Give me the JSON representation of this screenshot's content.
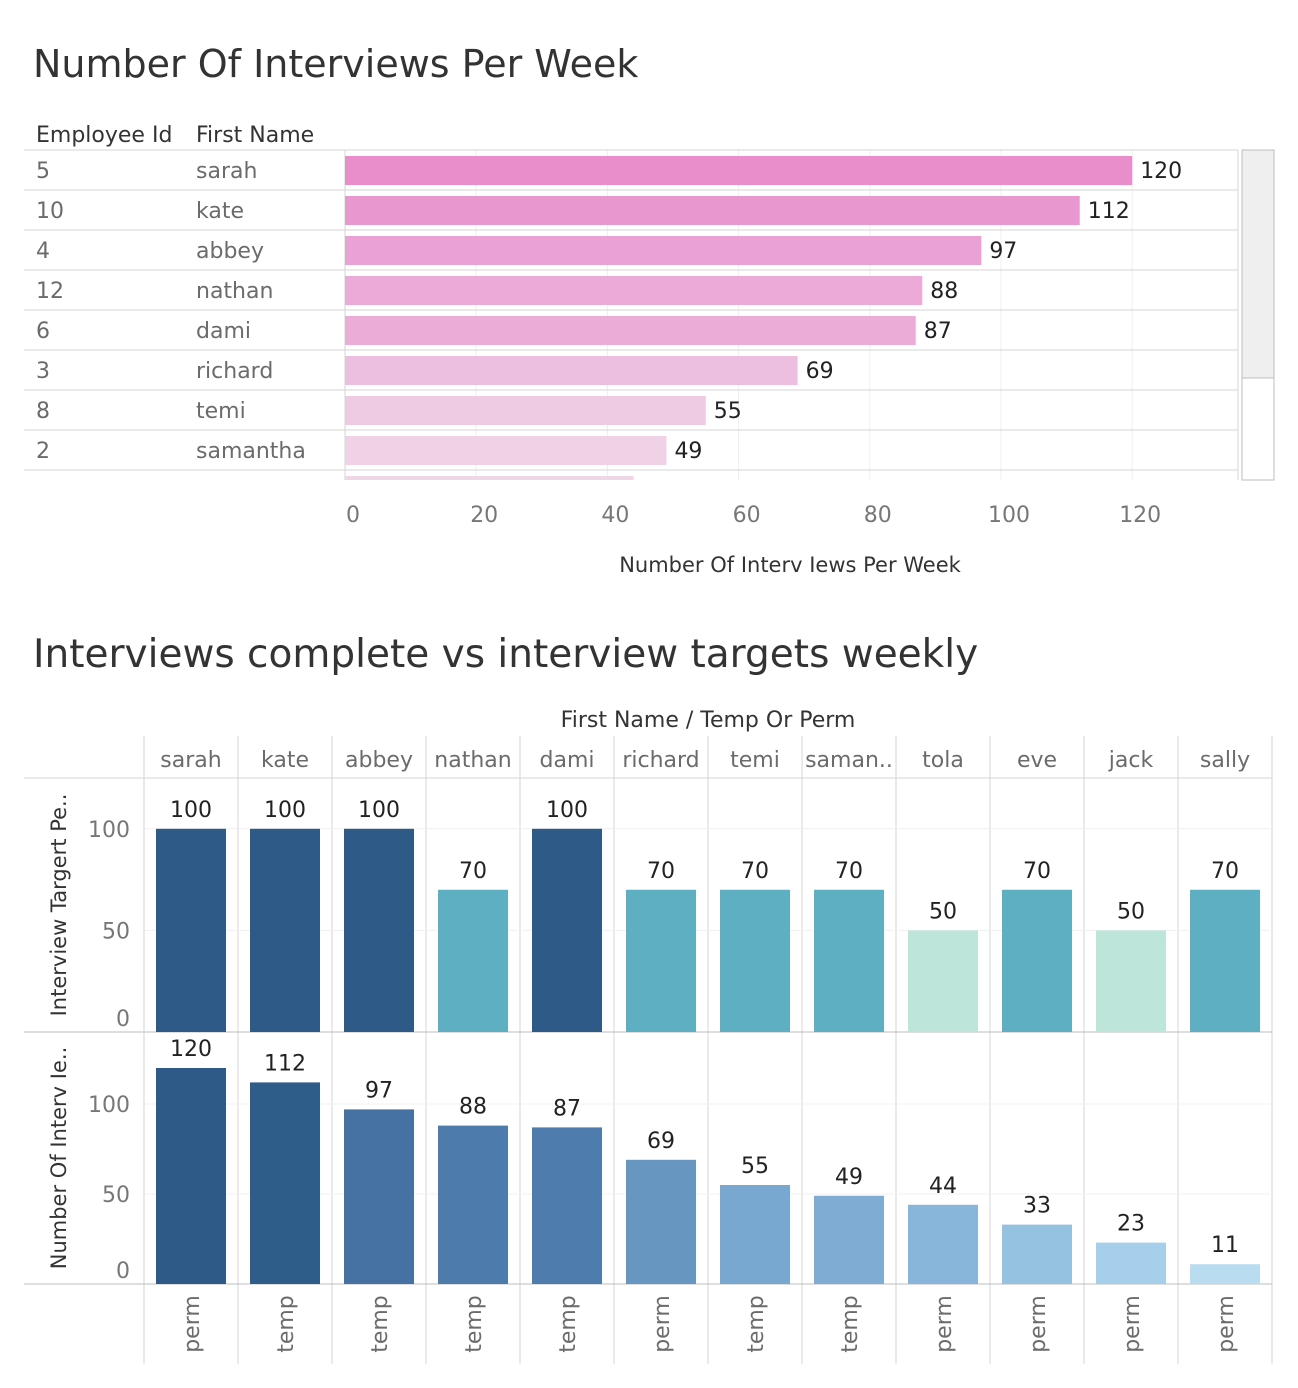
{
  "chart_data": [
    {
      "type": "bar",
      "orientation": "horizontal",
      "title": "Number Of Interviews Per Week",
      "columns": [
        "Employee Id",
        "First Name"
      ],
      "rows": [
        {
          "id": "5",
          "name": "sarah",
          "value": 120
        },
        {
          "id": "10",
          "name": "kate",
          "value": 112
        },
        {
          "id": "4",
          "name": "abbey",
          "value": 97
        },
        {
          "id": "12",
          "name": "nathan",
          "value": 88
        },
        {
          "id": "6",
          "name": "dami",
          "value": 87
        },
        {
          "id": "3",
          "name": "richard",
          "value": 69
        },
        {
          "id": "8",
          "name": "temi",
          "value": 55
        },
        {
          "id": "2",
          "name": "samantha",
          "value": 49
        }
      ],
      "partial_row_value": 44,
      "xlabel": "Number Of Interv Iews Per Week",
      "xlim": [
        0,
        135
      ],
      "xticks": [
        0,
        20,
        40,
        60,
        80,
        100,
        120
      ],
      "bar_colors": [
        "#e98ecb",
        "#e997cf",
        "#eaa1d3",
        "#ebaad7",
        "#ebacd8",
        "#ecbedf",
        "#eecbe3",
        "#efd2e5",
        "#f0d7e7"
      ]
    },
    {
      "type": "bar",
      "title": "Interviews complete vs interview targets weekly",
      "header": "First Name  /  Temp Or Perm",
      "categories": [
        "sarah",
        "kate",
        "abbey",
        "nathan",
        "dami",
        "richard",
        "temi",
        "saman..",
        "tola",
        "eve",
        "jack",
        "sally"
      ],
      "types": [
        "perm",
        "temp",
        "temp",
        "temp",
        "temp",
        "perm",
        "temp",
        "temp",
        "perm",
        "perm",
        "perm",
        "perm"
      ],
      "series": [
        {
          "name": "Interview Targert Pe..",
          "values": [
            100,
            100,
            100,
            70,
            100,
            70,
            70,
            70,
            50,
            70,
            50,
            70
          ],
          "ylim": [
            0,
            125
          ],
          "yticks": [
            0,
            50,
            100
          ],
          "colors": [
            "#2d5a87",
            "#2d5a87",
            "#2d5a87",
            "#5eafc2",
            "#2d5a87",
            "#5eafc2",
            "#5eafc2",
            "#5eafc2",
            "#bde5da",
            "#5eafc2",
            "#bde5da",
            "#5eafc2"
          ]
        },
        {
          "name": "Number Of Interv Ie..",
          "values": [
            120,
            112,
            97,
            88,
            87,
            69,
            55,
            49,
            44,
            33,
            23,
            11
          ],
          "ylim": [
            0,
            140
          ],
          "yticks": [
            0,
            50,
            100
          ],
          "colors": [
            "#2d5a87",
            "#2f5d8a",
            "#4572a3",
            "#4d7bac",
            "#4e7cad",
            "#6796c0",
            "#78a7d0",
            "#7eacd3",
            "#88b5da",
            "#96c2e2",
            "#a5cfea",
            "#b9dcf0"
          ]
        }
      ]
    }
  ]
}
